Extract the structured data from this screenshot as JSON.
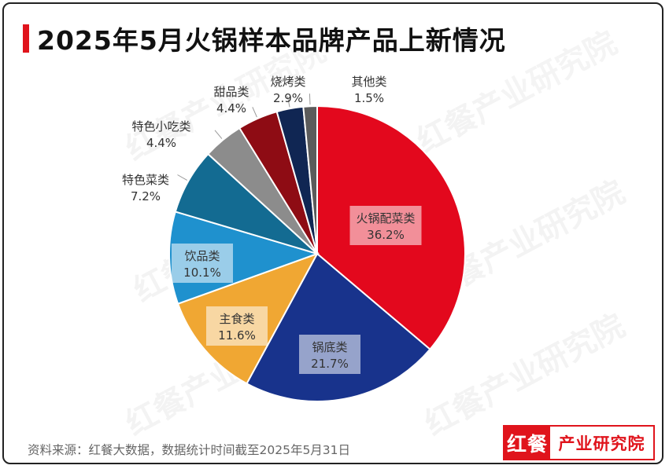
{
  "title": "2025年5月火锅样本品牌产品上新情况",
  "source_note": "资料来源：红餐大数据，数据统计时间截至2025年5月31日",
  "brand": {
    "logo_text": "红餐",
    "name": "产业研究院"
  },
  "watermark": {
    "logo_text": "红餐",
    "name": "产业研究院"
  },
  "chart_data": {
    "type": "pie",
    "unit": "%",
    "slices": [
      {
        "label": "火锅配菜类",
        "value": 36.2,
        "value_label": "36.2%",
        "color": "#e3081d"
      },
      {
        "label": "锅底类",
        "value": 21.7,
        "value_label": "21.7%",
        "color": "#18338c"
      },
      {
        "label": "主食类",
        "value": 11.6,
        "value_label": "11.6%",
        "color": "#f0a733"
      },
      {
        "label": "饮品类",
        "value": 10.1,
        "value_label": "10.1%",
        "color": "#1f91ce"
      },
      {
        "label": "特色菜类",
        "value": 7.2,
        "value_label": "7.2%",
        "color": "#136b92"
      },
      {
        "label": "特色小吃类",
        "value": 4.4,
        "value_label": "4.4%",
        "color": "#8c8c8c"
      },
      {
        "label": "甜品类",
        "value": 4.4,
        "value_label": "4.4%",
        "color": "#8e0c14"
      },
      {
        "label": "烧烤类",
        "value": 2.9,
        "value_label": "2.9%",
        "color": "#102653"
      },
      {
        "label": "其他类",
        "value": 1.5,
        "value_label": "1.5%",
        "color": "#5b5b5b"
      }
    ]
  }
}
